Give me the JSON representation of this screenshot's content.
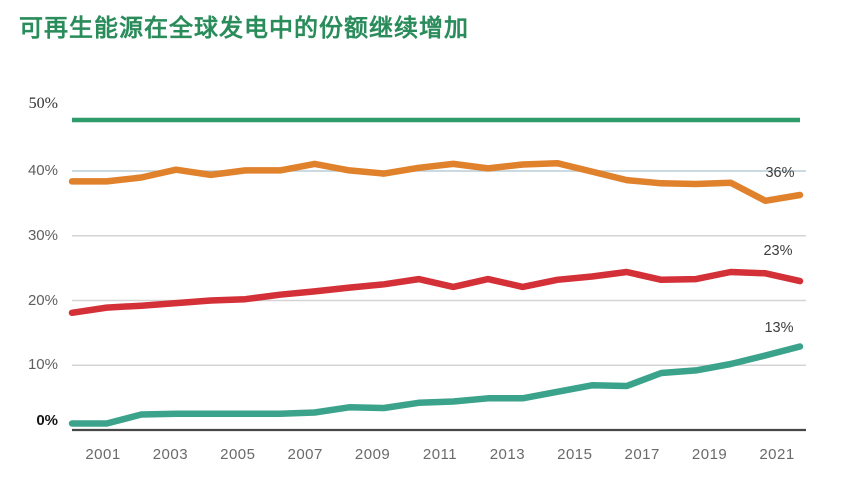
{
  "title": "可再生能源在全球发电中的份额继续增加",
  "colors": {
    "title": "#2a8c5b",
    "top_rule": "#2f9c6c",
    "grid": "#d4d4d4",
    "grid_40": "#b9cdd6",
    "axis_line": "#474747",
    "tick_text": "#5f5f5f",
    "end_label_text": "#3d3d3d"
  },
  "chart_data": {
    "type": "line",
    "title": "可再生能源在全球发电中的份额继续增加",
    "x": [
      2000,
      2001,
      2002,
      2003,
      2004,
      2005,
      2006,
      2007,
      2008,
      2009,
      2010,
      2011,
      2012,
      2013,
      2014,
      2015,
      2016,
      2017,
      2018,
      2019,
      2020,
      2021
    ],
    "x_tick_labels": [
      "2001",
      "2003",
      "2005",
      "2007",
      "2009",
      "2011",
      "2013",
      "2015",
      "2017",
      "2019",
      "2021"
    ],
    "y_tick_labels": [
      "0%",
      "10%",
      "20%",
      "30%",
      "40%",
      "50%"
    ],
    "ylim": [
      0,
      50
    ],
    "y_unit": "%",
    "grid": "horizontal-only",
    "legend": "none",
    "series": [
      {
        "name": "line-orange",
        "color": "#e0812c",
        "end_label": "36%",
        "values": [
          38.4,
          38.4,
          39.0,
          40.2,
          39.4,
          40.1,
          40.1,
          41.1,
          40.1,
          39.6,
          40.5,
          41.1,
          40.4,
          41.0,
          41.2,
          39.9,
          38.6,
          38.1,
          38.0,
          38.2,
          35.4,
          36.3
        ]
      },
      {
        "name": "line-red",
        "color": "#d33038",
        "end_label": "23%",
        "values": [
          18.1,
          18.9,
          19.2,
          19.6,
          20.0,
          20.2,
          20.9,
          21.4,
          22.0,
          22.5,
          23.3,
          22.1,
          23.3,
          22.1,
          23.2,
          23.7,
          24.4,
          23.2,
          23.3,
          24.4,
          24.2,
          23.0
        ]
      },
      {
        "name": "line-teal",
        "color": "#3ba38b",
        "end_label": "13%",
        "values": [
          1.0,
          1.0,
          2.4,
          2.5,
          2.5,
          2.5,
          2.5,
          2.7,
          3.5,
          3.4,
          4.2,
          4.4,
          4.9,
          4.9,
          5.9,
          6.9,
          6.8,
          8.8,
          9.2,
          10.2,
          11.5,
          12.9
        ]
      }
    ]
  }
}
